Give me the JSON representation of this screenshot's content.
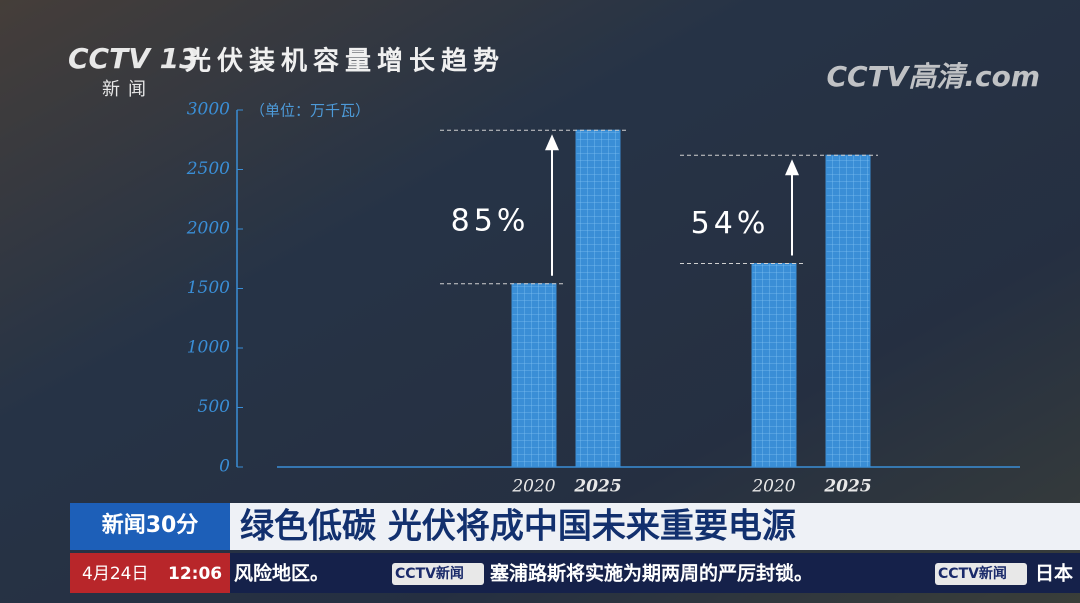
{
  "chart_data": {
    "type": "bar",
    "title": "光伏装机容量增长趋势",
    "unit_label": "（单位：万千瓦）",
    "categories": [
      "2020",
      "2025",
      "2020",
      "2025"
    ],
    "values": [
      1540,
      2830,
      1710,
      2620
    ],
    "color": "#3a8ed6",
    "ylim": [
      0,
      3000
    ],
    "yticks": [
      0,
      500,
      1000,
      1500,
      2000,
      2500,
      3000
    ],
    "annotations": [
      "85%",
      "54%"
    ]
  },
  "overlay": {
    "channel_logo": "CCTV 13",
    "channel_sub": "新闻",
    "hd_logo": "CCTV高清.com",
    "program": "新闻30分",
    "headline": "绿色低碳 光伏将成中国未来重要电源",
    "date": "4月24日",
    "time": "12:06",
    "ticker": [
      "风险地区。",
      "CCTV新闻",
      "塞浦路斯将实施为期两周的严厉封锁。",
      "CCTV新闻",
      "日本"
    ]
  }
}
